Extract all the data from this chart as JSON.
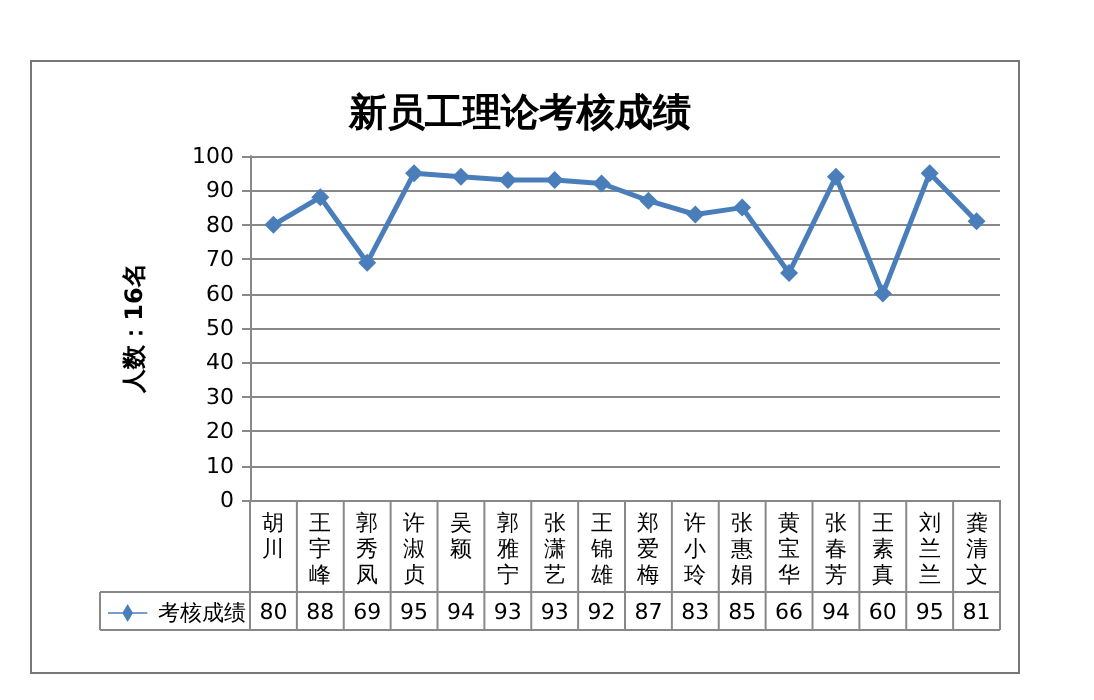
{
  "chart_data": {
    "type": "line",
    "title": "新员工理论考核成绩",
    "ylabel": "人数：16名",
    "categories": [
      "胡川",
      "王宇峰",
      "郭秀凤",
      "许淑贞",
      "吴颖",
      "郭雅宁",
      "张潇艺",
      "王锦雄",
      "郑爱梅",
      "许小玲",
      "张惠娟",
      "黄宝华",
      "张春芳",
      "王素真",
      "刘兰兰",
      "龚清文"
    ],
    "series": [
      {
        "name": "考核成绩",
        "color": "#4a7ebb",
        "values": [
          80,
          88,
          69,
          95,
          94,
          93,
          93,
          92,
          87,
          83,
          85,
          66,
          94,
          60,
          95,
          81
        ]
      }
    ],
    "ylim": [
      0,
      100
    ],
    "yticks": [
      0,
      10,
      20,
      30,
      40,
      50,
      60,
      70,
      80,
      90,
      100
    ],
    "grid": "y",
    "marker": "diamond",
    "line_style": "solid",
    "data_labels": true,
    "legend": "bottom left"
  }
}
